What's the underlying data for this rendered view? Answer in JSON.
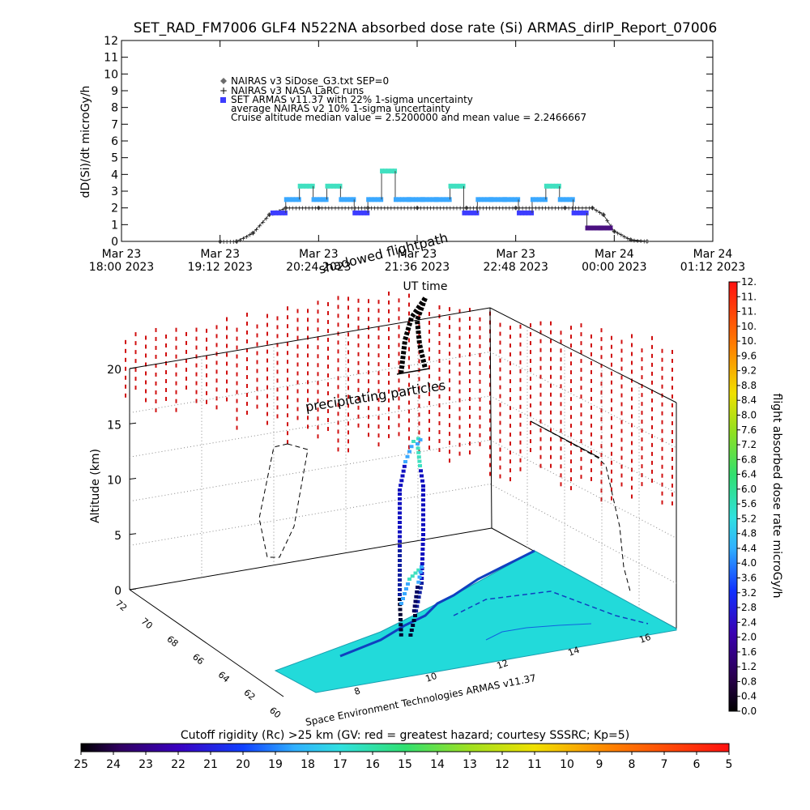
{
  "title": "SET_RAD_FM7006  GLF4 N522NA absorbed dose rate (Si) ARMAS_dirIP_Report_07006",
  "top_chart": {
    "ylabel": "dD(Si)/dt microGy/h",
    "xlabel": "UT time",
    "y_ticks": [
      "0",
      "1",
      "2",
      "3",
      "4",
      "5",
      "6",
      "7",
      "8",
      "9",
      "10",
      "11",
      "12"
    ],
    "x_ticks": [
      {
        "line1": "Mar 23",
        "line2": "18:00 2023"
      },
      {
        "line1": "Mar 23",
        "line2": "19:12 2023"
      },
      {
        "line1": "Mar 23",
        "line2": "20:24 2023"
      },
      {
        "line1": "Mar 23",
        "line2": "21:36 2023"
      },
      {
        "line1": "Mar 23",
        "line2": "22:48 2023"
      },
      {
        "line1": "Mar 24",
        "line2": "00:00 2023"
      },
      {
        "line1": "Mar 24",
        "line2": "01:12 2023"
      }
    ],
    "legend": [
      "NAIRAS v3 SiDose_G3.txt SEP=0",
      "NAIRAS v3 NASA LaRC runs",
      "SET ARMAS v11.37 with 22% 1-sigma uncertainty",
      "average NAIRAS v2 10% 1-sigma uncertainty",
      "Cruise altitude median value = 2.5200000 and mean value = 2.2466667"
    ]
  },
  "chart_data": [
    {
      "type": "scatter",
      "title": "SET_RAD_FM7006  GLF4 N522NA absorbed dose rate (Si) ARMAS_dirIP_Report_07006",
      "xlabel": "UT time",
      "ylabel": "dD(Si)/dt microGy/h",
      "xlim": [
        "2023-03-23 18:00",
        "2023-03-24 01:12"
      ],
      "ylim": [
        0,
        12
      ],
      "series": [
        {
          "name": "NAIRAS v3 SiDose_G3.txt SEP=0",
          "x": [
            "2023-03-23 19:12",
            "2023-03-23 19:24",
            "2023-03-23 19:36",
            "2023-03-23 19:48",
            "2023-03-23 20:00",
            "2023-03-23 20:24",
            "2023-03-23 21:00",
            "2023-03-23 21:36",
            "2023-03-23 22:12",
            "2023-03-23 22:48",
            "2023-03-23 23:24",
            "2023-03-23 23:44",
            "2023-03-23 23:52",
            "2023-03-24 00:00",
            "2023-03-24 00:12",
            "2023-03-24 00:24"
          ],
          "y": [
            0,
            0,
            0.5,
            1.6,
            2.0,
            2.0,
            2.0,
            2.0,
            2.0,
            2.0,
            2.0,
            2.0,
            1.6,
            0.6,
            0.1,
            0
          ]
        },
        {
          "name": "SET ARMAS v11.37 with 22% 1-sigma uncertainty",
          "x": [
            "2023-03-23 19:50",
            "2023-03-23 20:00",
            "2023-03-23 20:10",
            "2023-03-23 20:20",
            "2023-03-23 20:30",
            "2023-03-23 20:40",
            "2023-03-23 20:50",
            "2023-03-23 21:00",
            "2023-03-23 21:10",
            "2023-03-23 21:20",
            "2023-03-23 21:30",
            "2023-03-23 21:40",
            "2023-03-23 21:50",
            "2023-03-23 22:00",
            "2023-03-23 22:10",
            "2023-03-23 22:20",
            "2023-03-23 22:30",
            "2023-03-23 22:40",
            "2023-03-23 22:50",
            "2023-03-23 23:00",
            "2023-03-23 23:10",
            "2023-03-23 23:20",
            "2023-03-23 23:30",
            "2023-03-23 23:40",
            "2023-03-23 23:50"
          ],
          "y": [
            1.7,
            2.5,
            3.3,
            2.5,
            3.3,
            2.5,
            1.7,
            2.5,
            4.2,
            2.5,
            2.5,
            2.5,
            2.5,
            3.3,
            1.7,
            2.5,
            2.5,
            2.5,
            1.7,
            2.5,
            3.3,
            2.5,
            1.7,
            0.8,
            0.8
          ]
        }
      ]
    },
    {
      "type": "heatmap",
      "xlabel": "",
      "ylabel": "Altitude (km)",
      "z_ticks": [
        "0",
        "5",
        "10",
        "15",
        "20"
      ],
      "lat_ticks": [
        "72",
        "70",
        "68",
        "66",
        "64",
        "62",
        "60"
      ],
      "lon_ticks": [
        "8",
        "10",
        "12",
        "14",
        "16"
      ]
    }
  ],
  "annotations": {
    "shadowed_flightpath": "shadowed flightpath",
    "precipitating_particles": "precipitating particles",
    "credit": "Space Environment Technologies ARMAS v11.37"
  },
  "colorbar_right": {
    "title": "flight absorbed dose rate microGy/h",
    "ticks": [
      "0.0",
      "0.4",
      "0.8",
      "1.2",
      "1.6",
      "2.0",
      "2.4",
      "2.8",
      "3.2",
      "3.6",
      "4.0",
      "4.4",
      "4.8",
      "5.2",
      "5.6",
      "6.0",
      "6.4",
      "6.8",
      "7.2",
      "7.6",
      "8.0",
      "8.4",
      "8.8",
      "9.2",
      "9.6",
      "10.",
      "10.",
      "11.",
      "11.",
      "12."
    ]
  },
  "colorbar_bottom": {
    "title": "Cutoff rigidity (Rc) >25 km (GV: red = greatest hazard; courtesy SSSRC; Kp=5)",
    "ticks": [
      "25",
      "24",
      "23",
      "22",
      "21",
      "20",
      "19",
      "18",
      "17",
      "16",
      "15",
      "14",
      "13",
      "12",
      "11",
      "10",
      "9",
      "8",
      "7",
      "6",
      "5"
    ]
  },
  "colors": {
    "nairas": "#6b6b6b",
    "armas": "#3d3dff",
    "armas_high": "#40e0c0",
    "armas_mid": "#3aa8ff",
    "armas_low": "#1010c0",
    "red_dash": "#d01010",
    "map_fill": "#22dada"
  }
}
